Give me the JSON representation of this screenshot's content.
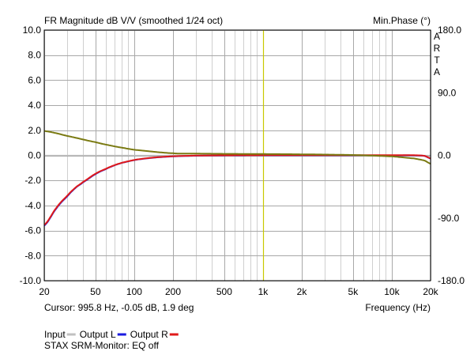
{
  "chart_data": {
    "type": "line",
    "title": "FR Magnitude dB V/V (smoothed 1/24 oct)",
    "right_axis_title": "Min.Phase (°)",
    "brand": [
      "A",
      "R",
      "T",
      "A"
    ],
    "xlabel": "Frequency (Hz)",
    "x_scale": "log",
    "xlim": [
      20,
      20000
    ],
    "x_ticks": [
      20,
      50,
      100,
      200,
      500,
      1000,
      2000,
      5000,
      10000,
      20000
    ],
    "x_tick_labels": [
      "20",
      "50",
      "100",
      "200",
      "500",
      "1k",
      "2k",
      "5k",
      "10k",
      "20k"
    ],
    "ylim": [
      -10,
      10
    ],
    "y_ticks": [
      -10,
      -8,
      -6,
      -4,
      -2,
      0,
      2,
      4,
      6,
      8,
      10
    ],
    "y_tick_labels": [
      "-10.0",
      "-8.0",
      "-6.0",
      "-4.0",
      "-2.0",
      "0.0",
      "2.0",
      "4.0",
      "6.0",
      "8.0",
      "10.0"
    ],
    "y2lim": [
      -180,
      180
    ],
    "y2_ticks": [
      -180,
      -90,
      0,
      90,
      180
    ],
    "y2_tick_labels": [
      "-180.0",
      "-90.0",
      "0.0",
      "90.0",
      "180.0"
    ],
    "grid": true,
    "cursor": {
      "frequency": 995.8,
      "text": "Cursor: 995.8 Hz, -0.05 dB, 1.9 deg",
      "color": "#c8c800"
    },
    "series": [
      {
        "name": "Input",
        "color": "#c0c0c0",
        "axis": "left",
        "x": [
          20,
          25,
          30,
          40,
          50,
          60,
          70,
          80,
          100,
          120,
          150,
          200,
          300,
          500,
          1000,
          2000,
          5000,
          10000,
          15000,
          18000,
          20000
        ],
        "y": [
          0.0,
          0.0,
          0.0,
          0.0,
          0.0,
          0.0,
          0.0,
          0.0,
          0.0,
          0.0,
          0.0,
          0.0,
          0.0,
          0.0,
          0.0,
          0.0,
          0.0,
          0.0,
          0.0,
          0.0,
          0.0
        ]
      },
      {
        "name": "Output L",
        "color": "#1a1ae0",
        "axis": "left",
        "x": [
          20,
          25,
          30,
          35,
          40,
          50,
          60,
          70,
          80,
          100,
          120,
          150,
          200,
          300,
          500,
          1000,
          2000,
          5000,
          10000,
          15000,
          18000,
          20000
        ],
        "y": [
          -5.6,
          -4.2,
          -3.3,
          -2.6,
          -2.15,
          -1.5,
          -1.1,
          -0.8,
          -0.6,
          -0.38,
          -0.26,
          -0.16,
          -0.08,
          -0.03,
          -0.01,
          0.0,
          0.0,
          0.0,
          0.0,
          0.0,
          -0.05,
          -0.25
        ]
      },
      {
        "name": "Output R",
        "color": "#e01a1a",
        "axis": "left",
        "x": [
          20,
          25,
          30,
          35,
          40,
          50,
          60,
          70,
          80,
          100,
          120,
          150,
          200,
          300,
          500,
          1000,
          2000,
          5000,
          10000,
          15000,
          18000,
          20000
        ],
        "y": [
          -5.55,
          -4.15,
          -3.25,
          -2.57,
          -2.12,
          -1.47,
          -1.08,
          -0.79,
          -0.59,
          -0.37,
          -0.25,
          -0.15,
          -0.07,
          -0.02,
          0.0,
          0.01,
          0.01,
          0.01,
          0.01,
          0.01,
          -0.04,
          -0.24
        ]
      },
      {
        "name": "Min.Phase",
        "color": "#7a7a12",
        "axis": "right",
        "x": [
          20,
          30,
          50,
          70,
          100,
          200,
          300,
          500,
          1000,
          2000,
          5000,
          10000,
          15000,
          18000,
          20000
        ],
        "y": [
          35,
          28,
          19,
          13,
          8,
          3,
          2.5,
          2.2,
          1.9,
          1.5,
          0.5,
          -1.5,
          -4.5,
          -7.5,
          -12
        ]
      }
    ]
  },
  "legend": {
    "items": [
      {
        "label": "Input",
        "color": "#c0c0c0"
      },
      {
        "label": "Output L",
        "color": "#1a1ae0"
      },
      {
        "label": "Output R",
        "color": "#e01a1a"
      }
    ],
    "caption": "STAX SRM-Monitor: EQ off"
  }
}
